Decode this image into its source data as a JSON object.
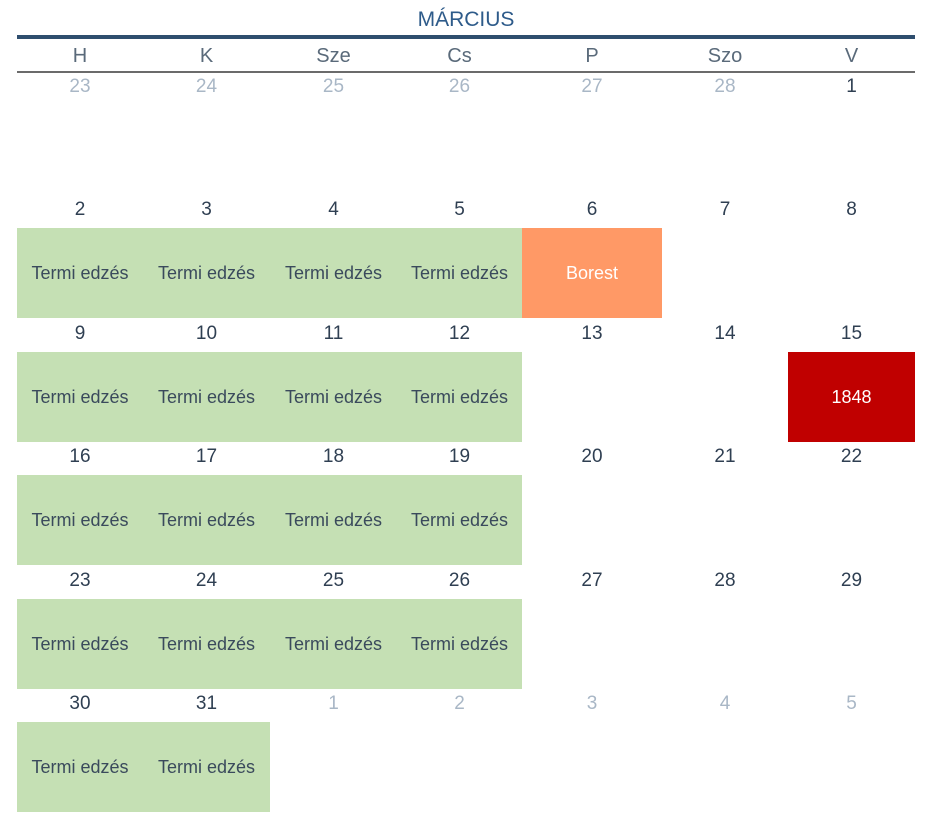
{
  "calendar": {
    "month": "MÁRCIUS",
    "weekdays": [
      "H",
      "K",
      "Sze",
      "Cs",
      "P",
      "Szo",
      "V"
    ],
    "colors": {
      "title": "#2e5b8a",
      "workout": "#c5e0b4",
      "rest": "#ff9966",
      "holiday": "#c00000",
      "day_text": "#2f3f52",
      "muted_text": "#a9b7c6"
    },
    "weeks": [
      [
        {
          "day": "23",
          "muted": true
        },
        {
          "day": "24",
          "muted": true
        },
        {
          "day": "25",
          "muted": true
        },
        {
          "day": "26",
          "muted": true
        },
        {
          "day": "27",
          "muted": true
        },
        {
          "day": "28",
          "muted": true
        },
        {
          "day": "1"
        }
      ],
      [
        {
          "day": "2",
          "event": "Termi edzés",
          "kind": "workout"
        },
        {
          "day": "3",
          "event": "Termi edzés",
          "kind": "workout"
        },
        {
          "day": "4",
          "event": "Termi edzés",
          "kind": "workout"
        },
        {
          "day": "5",
          "event": "Termi edzés",
          "kind": "workout"
        },
        {
          "day": "6",
          "event": "Borest",
          "kind": "rest"
        },
        {
          "day": "7"
        },
        {
          "day": "8"
        }
      ],
      [
        {
          "day": "9",
          "event": "Termi edzés",
          "kind": "workout"
        },
        {
          "day": "10",
          "event": "Termi edzés",
          "kind": "workout"
        },
        {
          "day": "11",
          "event": "Termi edzés",
          "kind": "workout"
        },
        {
          "day": "12",
          "event": "Termi edzés",
          "kind": "workout"
        },
        {
          "day": "13"
        },
        {
          "day": "14"
        },
        {
          "day": "15",
          "event": "1848",
          "kind": "holiday"
        }
      ],
      [
        {
          "day": "16",
          "event": "Termi edzés",
          "kind": "workout"
        },
        {
          "day": "17",
          "event": "Termi edzés",
          "kind": "workout"
        },
        {
          "day": "18",
          "event": "Termi edzés",
          "kind": "workout"
        },
        {
          "day": "19",
          "event": "Termi edzés",
          "kind": "workout"
        },
        {
          "day": "20"
        },
        {
          "day": "21"
        },
        {
          "day": "22"
        }
      ],
      [
        {
          "day": "23",
          "event": "Termi edzés",
          "kind": "workout"
        },
        {
          "day": "24",
          "event": "Termi edzés",
          "kind": "workout"
        },
        {
          "day": "25",
          "event": "Termi edzés",
          "kind": "workout"
        },
        {
          "day": "26",
          "event": "Termi edzés",
          "kind": "workout"
        },
        {
          "day": "27"
        },
        {
          "day": "28"
        },
        {
          "day": "29"
        }
      ],
      [
        {
          "day": "30",
          "event": "Termi edzés",
          "kind": "workout"
        },
        {
          "day": "31",
          "event": "Termi edzés",
          "kind": "workout"
        },
        {
          "day": "1",
          "muted": true
        },
        {
          "day": "2",
          "muted": true
        },
        {
          "day": "3",
          "muted": true
        },
        {
          "day": "4",
          "muted": true
        },
        {
          "day": "5",
          "muted": true
        }
      ]
    ]
  }
}
